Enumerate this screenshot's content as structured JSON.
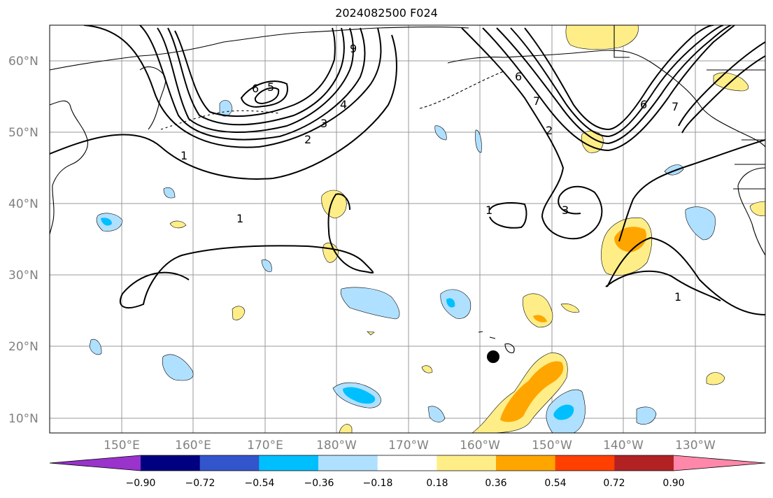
{
  "title": "2024082500 F024",
  "map": {
    "lat_labels": [
      "60°N",
      "50°N",
      "40°N",
      "30°N",
      "20°N",
      "10°N"
    ],
    "lon_labels": [
      "150°E",
      "160°E",
      "170°E",
      "180°W",
      "170°W",
      "160°W",
      "150°W",
      "140°W",
      "130°W"
    ],
    "contour_labels": [
      "6",
      "5",
      "9",
      "4",
      "3",
      "2",
      "1",
      "1",
      "1",
      "3",
      "6",
      "7",
      "6",
      "7",
      "2",
      "1"
    ],
    "gridlines": true,
    "marker": "black-dot"
  },
  "colorbar": {
    "colors": [
      "#9933cc",
      "#000080",
      "#3355cc",
      "#00bfff",
      "#b0e0ff",
      "#ffffff",
      "#ffee88",
      "#ffa500",
      "#ff4000",
      "#b22222",
      "#ff88aa"
    ],
    "tick_labels": [
      "−0.90",
      "−0.72",
      "−0.54",
      "−0.36",
      "−0.18",
      "0.18",
      "0.36",
      "0.54",
      "0.72",
      "0.90"
    ],
    "extend": "both"
  }
}
